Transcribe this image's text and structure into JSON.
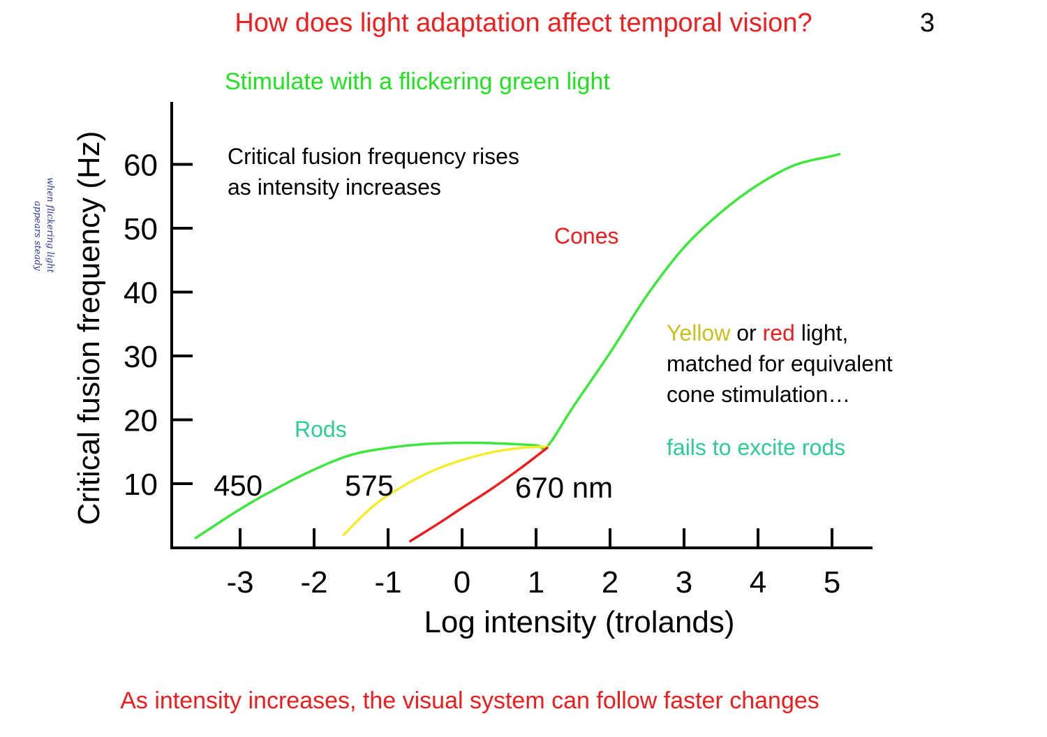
{
  "slide": {
    "title": "How does light adaptation affect temporal vision?",
    "page_number": "3",
    "subtitle": "Stimulate with a flickering green light",
    "note_line1": "Critical fusion frequency rises",
    "note_line2": "as intensity increases",
    "yellow_word": "Yellow",
    "or_word": " or ",
    "red_word": "red",
    "light_word": " light,",
    "matched_line": "matched for equivalent",
    "cone_line": "cone stimulation…",
    "fails_text": "fails to excite rods",
    "bottom_text": "As intensity increases, the visual system can follow faster changes",
    "handwritten_line1": "when flickering light",
    "handwritten_line2": "appears steady"
  },
  "colors": {
    "title_red": "#f02020",
    "green_curve": "#3ce63c",
    "yellow_curve": "#f4ec2c",
    "red_curve": "#ee1c1c",
    "rods_label": "#2ecc90",
    "handwriting_ink": "#2a3aa0"
  },
  "chart_data": {
    "type": "line",
    "title": "",
    "xlabel": "Log intensity  (trolands)",
    "ylabel": "Critical fusion frequency  (Hz)",
    "xlim": [
      -4,
      5.5
    ],
    "ylim": [
      0,
      68
    ],
    "xticks": [
      -3,
      -2,
      -1,
      0,
      1,
      2,
      3,
      4,
      5
    ],
    "yticks": [
      10,
      20,
      30,
      40,
      50,
      60
    ],
    "annotations": {
      "rods": "Rods",
      "cones": "Cones",
      "lambda_450": "450",
      "lambda_575": "575",
      "lambda_670": "670  nm"
    },
    "series": [
      {
        "name": "450 nm",
        "color": "green",
        "x": [
          -3.6,
          -3.0,
          -2.5,
          -2.0,
          -1.5,
          -1.0,
          -0.5,
          0.0,
          0.5,
          1.0,
          1.15,
          1.5,
          2.0,
          2.5,
          3.0,
          3.5,
          4.0,
          4.5,
          5.0,
          5.1
        ],
        "y": [
          1.5,
          6.0,
          9.3,
          12.2,
          14.5,
          15.6,
          16.2,
          16.4,
          16.3,
          16.0,
          15.8,
          22.0,
          30.5,
          39.5,
          47.0,
          52.5,
          56.8,
          59.9,
          61.3,
          61.6
        ]
      },
      {
        "name": "575 nm",
        "color": "yellow",
        "x": [
          -1.6,
          -1.2,
          -0.8,
          -0.4,
          0.0,
          0.4,
          0.8,
          1.15
        ],
        "y": [
          2.0,
          6.5,
          9.6,
          12.0,
          13.7,
          14.9,
          15.6,
          15.8
        ]
      },
      {
        "name": "670 nm",
        "color": "red",
        "x": [
          -0.7,
          -0.3,
          0.0,
          0.4,
          0.8,
          1.15
        ],
        "y": [
          1.0,
          3.9,
          6.2,
          9.2,
          12.5,
          15.6
        ]
      }
    ]
  }
}
